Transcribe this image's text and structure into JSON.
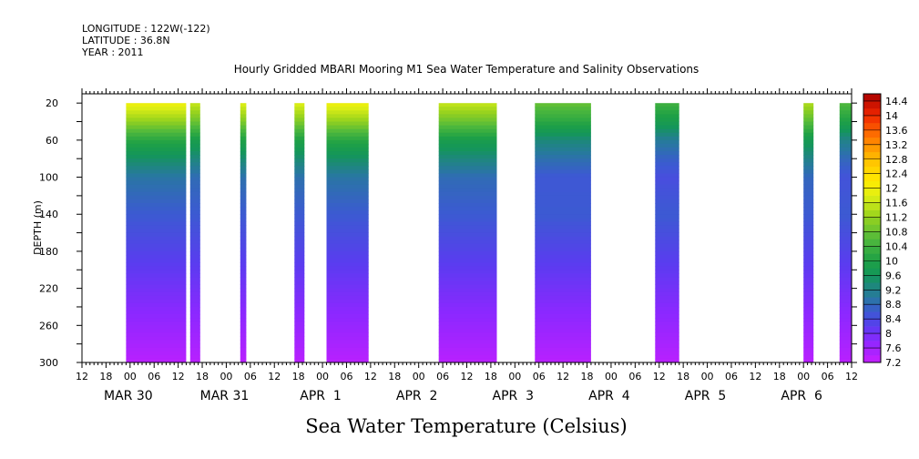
{
  "header": {
    "longitude": "LONGITUDE : 122W(-122)",
    "latitude": "LATITUDE : 36.8N",
    "year": "YEAR : 2011"
  },
  "chart_data": {
    "type": "heatmap",
    "title": "Hourly Gridded MBARI Mooring M1 Sea Water Temperature and Salinity Observations",
    "bottom_title": "Sea Water Temperature (Celsius)",
    "ylabel": "DEPTH (m)",
    "x_range_hours": [
      12,
      204
    ],
    "ylim": [
      300,
      10
    ],
    "y_ticks": [
      20,
      60,
      100,
      140,
      180,
      220,
      260,
      300
    ],
    "x_hour_ticks": [
      "12",
      "18",
      "00",
      "06",
      "12",
      "18",
      "00",
      "06",
      "12",
      "18",
      "00",
      "06",
      "12",
      "18",
      "00",
      "06",
      "12",
      "18",
      "00",
      "06",
      "12",
      "18",
      "00",
      "06",
      "12",
      "18",
      "00",
      "06",
      "12",
      "18",
      "00",
      "06",
      "12",
      "18",
      "00",
      "06",
      "12",
      "18",
      "00",
      "06",
      "12",
      "18",
      "00",
      "06",
      "12",
      "18",
      "00",
      "06",
      "12",
      "18",
      "00",
      "06",
      "12",
      "18",
      "00",
      "06",
      "12",
      "18",
      "00",
      "06",
      "12",
      "18",
      "00",
      "06",
      "12",
      "18",
      "00",
      "06",
      "12",
      "18",
      "00",
      "06",
      "12",
      "18",
      "00",
      "06",
      "12",
      "18",
      "00",
      "06",
      "12",
      "18",
      "00",
      "06",
      "12",
      "18",
      "00",
      "06",
      "12",
      "18",
      "00",
      "06",
      "12",
      "18",
      "00",
      "06",
      "12",
      "18",
      "00",
      "06",
      "12",
      "18",
      "00",
      "06",
      "12",
      "18",
      "00",
      "06",
      "12",
      "18",
      "00",
      "06",
      "12",
      "18",
      "00",
      "06",
      "12"
    ],
    "day_labels": [
      "MAR 30",
      "MAR 31",
      "APR  1",
      "APR  2",
      "APR  3",
      "APR  4",
      "APR  5",
      "APR  6"
    ],
    "colorbar": {
      "min": 7.2,
      "max": 14.6,
      "step": 0.2,
      "labels": [
        "14.4",
        "14",
        "13.6",
        "13.2",
        "12.8",
        "12.4",
        "12",
        "11.6",
        "11.2",
        "10.8",
        "10.4",
        "10",
        "9.6",
        "9.2",
        "8.8",
        "8.4",
        "8",
        "7.6",
        "7.2"
      ]
    },
    "data_segments": [
      {
        "start_hour": 23.0,
        "end_hour": 38.0,
        "surface_temp": 12.0
      },
      {
        "start_hour": 39.0,
        "end_hour": 41.5,
        "surface_temp": 11.6
      },
      {
        "start_hour": 51.5,
        "end_hour": 53.0,
        "surface_temp": 11.8
      },
      {
        "start_hour": 65.0,
        "end_hour": 67.5,
        "surface_temp": 11.8
      },
      {
        "start_hour": 73.0,
        "end_hour": 83.5,
        "surface_temp": 12.0
      },
      {
        "start_hour": 101.0,
        "end_hour": 115.5,
        "surface_temp": 11.6
      },
      {
        "start_hour": 125.0,
        "end_hour": 139.0,
        "surface_temp": 10.8
      },
      {
        "start_hour": 155.0,
        "end_hour": 161.0,
        "surface_temp": 10.4
      },
      {
        "start_hour": 192.0,
        "end_hour": 194.5,
        "surface_temp": 11.4
      },
      {
        "start_hour": 201.0,
        "end_hour": 204.0,
        "surface_temp": 10.6
      }
    ],
    "temperature_profile": [
      {
        "depth": 20,
        "temp": 11.8
      },
      {
        "depth": 40,
        "temp": 11.0
      },
      {
        "depth": 60,
        "temp": 10.0
      },
      {
        "depth": 80,
        "temp": 9.4
      },
      {
        "depth": 100,
        "temp": 8.9
      },
      {
        "depth": 140,
        "temp": 8.6
      },
      {
        "depth": 180,
        "temp": 8.3
      },
      {
        "depth": 220,
        "temp": 8.0
      },
      {
        "depth": 260,
        "temp": 7.7
      },
      {
        "depth": 300,
        "temp": 7.35
      }
    ]
  }
}
